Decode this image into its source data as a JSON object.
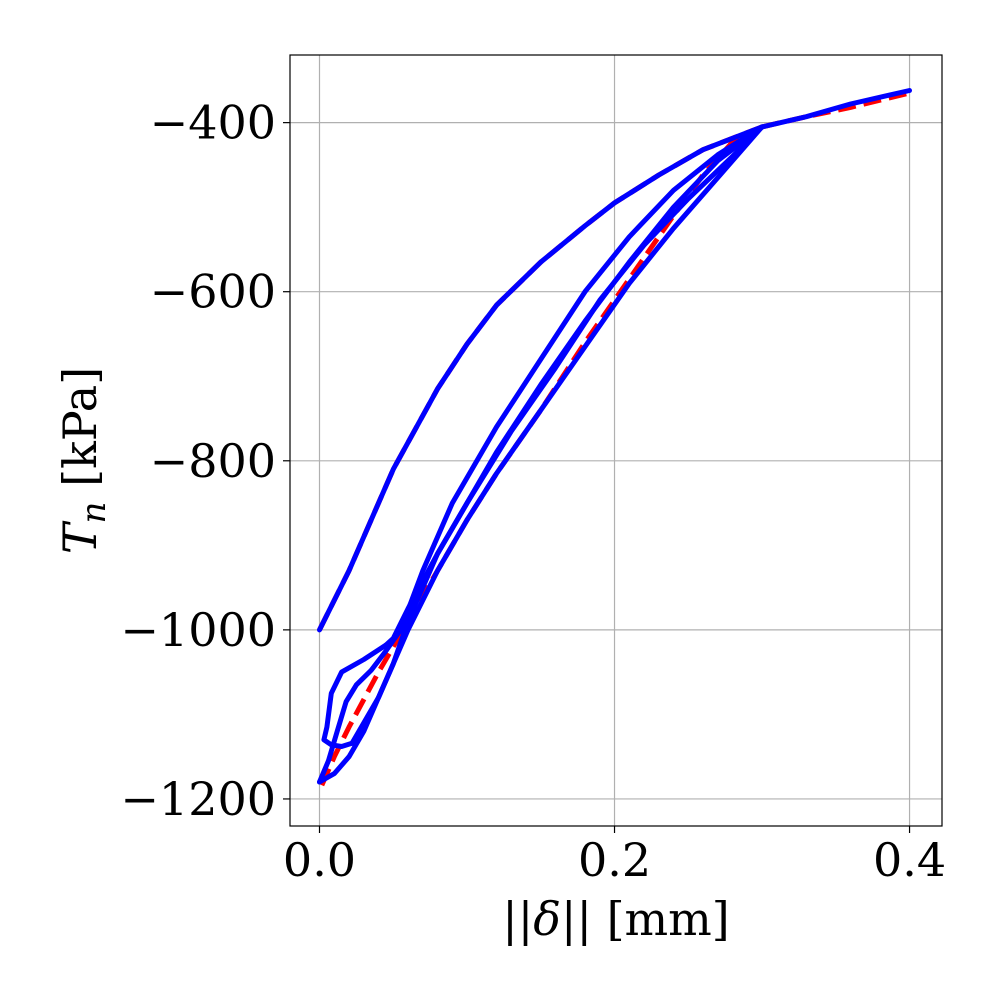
{
  "chart_data": {
    "type": "line",
    "xlabel_parts": [
      "||",
      "δ",
      "|| [mm]"
    ],
    "ylabel_parts": [
      "T",
      "n",
      " [kPa]"
    ],
    "xlim": [
      -0.02,
      0.422
    ],
    "ylim": [
      -1232,
      -320
    ],
    "xticks": [
      0.0,
      0.2,
      0.4
    ],
    "xtick_labels": [
      "0.0",
      "0.2",
      "0.4"
    ],
    "yticks": [
      -400,
      -600,
      -800,
      -1000,
      -1200
    ],
    "ytick_labels": [
      "−400",
      "−600",
      "−800",
      "−1000",
      "−1200"
    ],
    "grid": true,
    "legend": "none",
    "series": [
      {
        "color": "#ff0000",
        "style": "dashed",
        "segments": [
          [
            [
              0.0,
              -1000
            ],
            [
              0.02,
              -930
            ],
            [
              0.05,
              -810
            ],
            [
              0.08,
              -715
            ],
            [
              0.1,
              -662
            ],
            [
              0.12,
              -616
            ],
            [
              0.15,
              -565
            ],
            [
              0.18,
              -522
            ],
            [
              0.2,
              -495
            ],
            [
              0.23,
              -462
            ],
            [
              0.26,
              -432
            ],
            [
              0.3,
              -405
            ]
          ],
          [
            [
              0.3,
              -405
            ],
            [
              0.28,
              -423
            ],
            [
              0.26,
              -462
            ],
            [
              0.24,
              -510
            ],
            [
              0.22,
              -560
            ],
            [
              0.2,
              -610
            ],
            [
              0.18,
              -660
            ],
            [
              0.15,
              -740
            ],
            [
              0.12,
              -815
            ],
            [
              0.1,
              -870
            ],
            [
              0.08,
              -930
            ],
            [
              0.06,
              -990
            ],
            [
              0.04,
              -1050
            ],
            [
              0.02,
              -1115
            ],
            [
              0.01,
              -1150
            ],
            [
              0.0,
              -1190
            ]
          ],
          [
            [
              0.3,
              -405
            ],
            [
              0.33,
              -393
            ],
            [
              0.36,
              -382
            ],
            [
              0.4,
              -365
            ]
          ]
        ]
      },
      {
        "color": "#0000ff",
        "style": "solid",
        "segments": [
          [
            [
              0.0,
              -1000
            ],
            [
              0.02,
              -930
            ],
            [
              0.05,
              -810
            ],
            [
              0.08,
              -715
            ],
            [
              0.1,
              -662
            ],
            [
              0.12,
              -616
            ],
            [
              0.15,
              -565
            ],
            [
              0.18,
              -522
            ],
            [
              0.2,
              -495
            ],
            [
              0.23,
              -462
            ],
            [
              0.26,
              -432
            ],
            [
              0.3,
              -405
            ],
            [
              0.33,
              -393
            ],
            [
              0.36,
              -378
            ],
            [
              0.4,
              -362
            ]
          ],
          [
            [
              0.3,
              -405
            ],
            [
              0.27,
              -445
            ],
            [
              0.24,
              -500
            ],
            [
              0.21,
              -565
            ],
            [
              0.18,
              -635
            ],
            [
              0.15,
              -710
            ],
            [
              0.12,
              -790
            ],
            [
              0.1,
              -850
            ],
            [
              0.08,
              -910
            ],
            [
              0.06,
              -975
            ],
            [
              0.05,
              -1010
            ],
            [
              0.045,
              -1018
            ]
          ],
          [
            [
              0.045,
              -1018
            ],
            [
              0.03,
              -1035
            ],
            [
              0.015,
              -1050
            ],
            [
              0.008,
              -1075
            ],
            [
              0.005,
              -1115
            ],
            [
              0.003,
              -1130
            ],
            [
              0.008,
              -1136
            ],
            [
              0.015,
              -1138
            ],
            [
              0.022,
              -1134
            ]
          ],
          [
            [
              0.022,
              -1134
            ],
            [
              0.03,
              -1110
            ],
            [
              0.04,
              -1080
            ],
            [
              0.05,
              -1040
            ],
            [
              0.06,
              -990
            ],
            [
              0.08,
              -910
            ],
            [
              0.1,
              -850
            ],
            [
              0.13,
              -765
            ],
            [
              0.16,
              -690
            ],
            [
              0.19,
              -610
            ],
            [
              0.22,
              -545
            ],
            [
              0.25,
              -490
            ],
            [
              0.28,
              -440
            ],
            [
              0.3,
              -405
            ]
          ],
          [
            [
              0.3,
              -405
            ],
            [
              0.27,
              -438
            ],
            [
              0.24,
              -480
            ],
            [
              0.21,
              -535
            ],
            [
              0.18,
              -600
            ],
            [
              0.15,
              -680
            ],
            [
              0.12,
              -760
            ],
            [
              0.09,
              -850
            ],
            [
              0.07,
              -930
            ],
            [
              0.055,
              -1000
            ],
            [
              0.045,
              -1025
            ],
            [
              0.035,
              -1048
            ],
            [
              0.025,
              -1065
            ],
            [
              0.018,
              -1085
            ],
            [
              0.012,
              -1120
            ],
            [
              0.006,
              -1155
            ],
            [
              0.0,
              -1180
            ]
          ],
          [
            [
              0.0,
              -1180
            ],
            [
              0.01,
              -1170
            ],
            [
              0.02,
              -1150
            ],
            [
              0.03,
              -1120
            ],
            [
              0.045,
              -1060
            ],
            [
              0.06,
              -1000
            ],
            [
              0.08,
              -930
            ],
            [
              0.1,
              -870
            ],
            [
              0.12,
              -815
            ],
            [
              0.15,
              -740
            ],
            [
              0.18,
              -665
            ],
            [
              0.21,
              -590
            ],
            [
              0.24,
              -525
            ],
            [
              0.27,
              -465
            ],
            [
              0.3,
              -405
            ]
          ]
        ]
      }
    ]
  }
}
